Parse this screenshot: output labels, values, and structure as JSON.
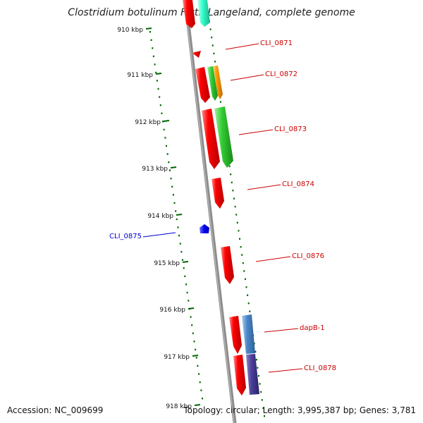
{
  "title": "Clostridium botulinum F str. Langeland, complete genome",
  "footer": {
    "accession": "Accession: NC_009699",
    "summary": "Topology: circular; Length: 3,995,387 bp; Genes: 3,781"
  },
  "ticks": [
    {
      "label": "910 kbp"
    },
    {
      "label": "911 kbp"
    },
    {
      "label": "912 kbp"
    },
    {
      "label": "913 kbp"
    },
    {
      "label": "914 kbp"
    },
    {
      "label": "915 kbp"
    },
    {
      "label": "916 kbp"
    },
    {
      "label": "917 kbp"
    },
    {
      "label": "918 kbp"
    }
  ],
  "gene_labels": [
    {
      "name": "CLI_0871",
      "color": "#cc0000"
    },
    {
      "name": "CLI_0872",
      "color": "#cc0000"
    },
    {
      "name": "CLI_0873",
      "color": "#cc0000"
    },
    {
      "name": "CLI_0874",
      "color": "#cc0000"
    },
    {
      "name": "CLI_0875",
      "color": "#0000cc"
    },
    {
      "name": "CLI_0876",
      "color": "#cc0000"
    },
    {
      "name": "dapB-1",
      "color": "#cc0000"
    },
    {
      "name": "CLI_0878",
      "color": "#cc0000"
    }
  ],
  "colors": {
    "gene_red": "#ff0000",
    "gene_green": "#33cc33",
    "gene_orange": "#ff9900",
    "gene_blue": "#0000ee",
    "gene_steel": "#4a86c8",
    "gene_indigo": "#4a3f99",
    "gene_teal": "#33ffcc",
    "backbone": "#888888",
    "tick_green": "#006600"
  }
}
